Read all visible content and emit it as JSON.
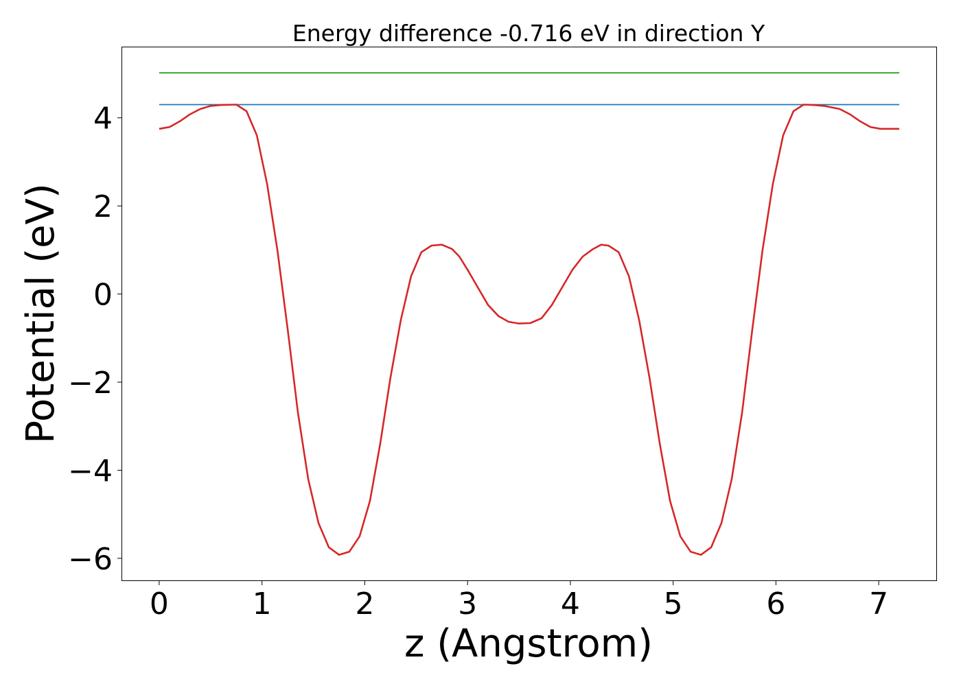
{
  "chart_data": {
    "type": "line",
    "title": "Energy difference -0.716 eV in direction Y",
    "xlabel": "z (Angstrom)",
    "ylabel": "Potential (eV)",
    "xlim": [
      -0.36,
      7.56
    ],
    "ylim": [
      -6.5,
      5.6
    ],
    "xticks": [
      0,
      1,
      2,
      3,
      4,
      5,
      6,
      7
    ],
    "xtick_labels": [
      "0",
      "1",
      "2",
      "3",
      "4",
      "5",
      "6",
      "7"
    ],
    "yticks": [
      4,
      2,
      0,
      -2,
      -4,
      -6
    ],
    "ytick_labels": [
      "4",
      "2",
      "0",
      "−2",
      "−4",
      "−6"
    ],
    "grid": false,
    "series": [
      {
        "color": "#d62728",
        "x": [
          0.0,
          0.1,
          0.2,
          0.3,
          0.4,
          0.5,
          0.6,
          0.75,
          0.85,
          0.95,
          1.05,
          1.15,
          1.25,
          1.35,
          1.45,
          1.55,
          1.65,
          1.75,
          1.85,
          1.95,
          2.05,
          2.15,
          2.25,
          2.35,
          2.45,
          2.55,
          2.65,
          2.75,
          2.85,
          2.92,
          3.0,
          3.1,
          3.2,
          3.3,
          3.4,
          3.5,
          3.61,
          3.72,
          3.82,
          3.92,
          4.02,
          4.12,
          4.22,
          4.3,
          4.37,
          4.47,
          4.57,
          4.67,
          4.77,
          4.87,
          4.97,
          5.07,
          5.17,
          5.27,
          5.37,
          5.47,
          5.57,
          5.67,
          5.77,
          5.87,
          5.97,
          6.07,
          6.17,
          6.27,
          6.37,
          6.47,
          6.62,
          6.72,
          6.82,
          6.92,
          7.02,
          7.12,
          7.2
        ],
        "y": [
          3.75,
          3.79,
          3.92,
          4.08,
          4.2,
          4.27,
          4.29,
          4.3,
          4.15,
          3.6,
          2.5,
          1.0,
          -0.8,
          -2.7,
          -4.2,
          -5.2,
          -5.75,
          -5.92,
          -5.85,
          -5.5,
          -4.7,
          -3.4,
          -1.9,
          -0.6,
          0.4,
          0.95,
          1.1,
          1.12,
          1.02,
          0.85,
          0.55,
          0.15,
          -0.25,
          -0.5,
          -0.63,
          -0.67,
          -0.66,
          -0.55,
          -0.25,
          0.15,
          0.55,
          0.85,
          1.02,
          1.12,
          1.1,
          0.95,
          0.4,
          -0.6,
          -1.9,
          -3.4,
          -4.7,
          -5.5,
          -5.85,
          -5.92,
          -5.75,
          -5.2,
          -4.2,
          -2.7,
          -0.8,
          1.0,
          2.5,
          3.6,
          4.15,
          4.3,
          4.29,
          4.27,
          4.2,
          4.08,
          3.92,
          3.79,
          3.75,
          3.75,
          3.75
        ]
      },
      {
        "color": "#1f77b4",
        "x": [
          0.0,
          7.2
        ],
        "y": [
          4.3,
          4.3
        ]
      },
      {
        "color": "#2ca02c",
        "x": [
          0.0,
          7.2
        ],
        "y": [
          5.02,
          5.02
        ]
      }
    ]
  }
}
